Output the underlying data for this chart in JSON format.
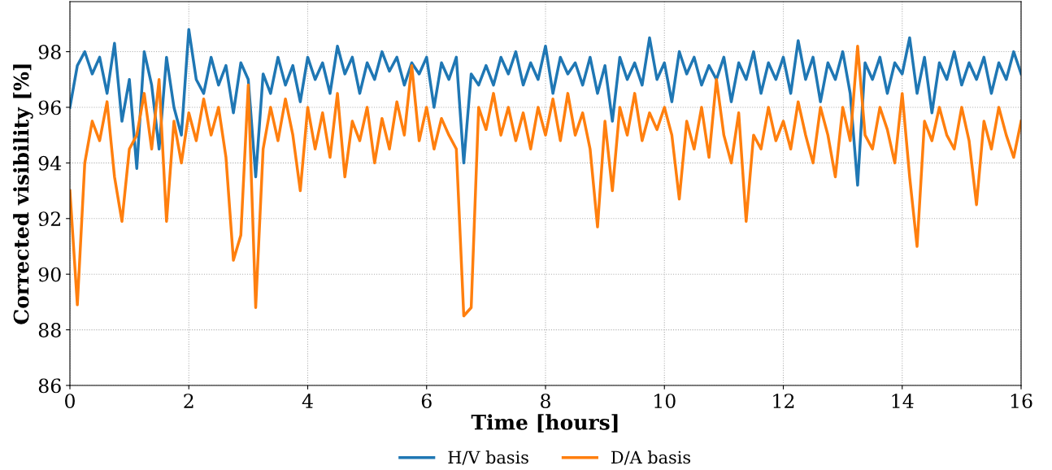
{
  "chart_data": {
    "type": "line",
    "xlabel": "Time [hours]",
    "ylabel": "Corrected visibility [%]",
    "x": [
      0,
      0.125,
      0.25,
      0.375,
      0.5,
      0.625,
      0.75,
      0.875,
      1,
      1.125,
      1.25,
      1.375,
      1.5,
      1.625,
      1.75,
      1.875,
      2,
      2.125,
      2.25,
      2.375,
      2.5,
      2.625,
      2.75,
      2.875,
      3,
      3.125,
      3.25,
      3.375,
      3.5,
      3.625,
      3.75,
      3.875,
      4,
      4.125,
      4.25,
      4.375,
      4.5,
      4.625,
      4.75,
      4.875,
      5,
      5.125,
      5.25,
      5.375,
      5.5,
      5.625,
      5.75,
      5.875,
      6,
      6.125,
      6.25,
      6.375,
      6.5,
      6.625,
      6.75,
      6.875,
      7,
      7.125,
      7.25,
      7.375,
      7.5,
      7.625,
      7.75,
      7.875,
      8,
      8.125,
      8.25,
      8.375,
      8.5,
      8.625,
      8.75,
      8.875,
      9,
      9.125,
      9.25,
      9.375,
      9.5,
      9.625,
      9.75,
      9.875,
      10,
      10.125,
      10.25,
      10.375,
      10.5,
      10.625,
      10.75,
      10.875,
      11,
      11.125,
      11.25,
      11.375,
      11.5,
      11.625,
      11.75,
      11.875,
      12,
      12.125,
      12.25,
      12.375,
      12.5,
      12.625,
      12.75,
      12.875,
      13,
      13.125,
      13.25,
      13.375,
      13.5,
      13.625,
      13.75,
      13.875,
      14,
      14.125,
      14.25,
      14.375,
      14.5,
      14.625,
      14.75,
      14.875,
      15,
      15.125,
      15.25,
      15.375,
      15.5,
      15.625,
      15.75,
      15.875,
      16
    ],
    "series": [
      {
        "name": "H/V basis",
        "color": "#1f77b4",
        "values": [
          96.0,
          97.5,
          98.0,
          97.2,
          97.8,
          96.5,
          98.3,
          95.5,
          97.0,
          93.8,
          98.0,
          96.8,
          94.5,
          97.8,
          96.0,
          95.0,
          98.8,
          97.0,
          96.5,
          97.8,
          96.8,
          97.5,
          95.8,
          97.6,
          97.0,
          93.5,
          97.2,
          96.5,
          97.8,
          96.8,
          97.5,
          96.2,
          97.8,
          97.0,
          97.6,
          96.5,
          98.2,
          97.2,
          97.8,
          96.5,
          97.6,
          97.0,
          98.0,
          97.3,
          97.8,
          96.8,
          97.6,
          97.2,
          97.8,
          96.0,
          97.6,
          97.0,
          97.8,
          94.0,
          97.2,
          96.8,
          97.5,
          96.8,
          97.8,
          97.2,
          98.0,
          96.8,
          97.6,
          97.0,
          98.2,
          96.5,
          97.8,
          97.2,
          97.6,
          96.8,
          97.8,
          96.5,
          97.5,
          95.5,
          97.8,
          97.0,
          97.6,
          96.8,
          98.5,
          97.0,
          97.6,
          96.2,
          98.0,
          97.2,
          97.8,
          96.8,
          97.5,
          97.0,
          97.8,
          96.2,
          97.6,
          97.0,
          98.0,
          96.5,
          97.6,
          97.0,
          97.8,
          96.5,
          98.4,
          97.0,
          97.8,
          96.2,
          97.6,
          97.0,
          98.0,
          96.5,
          93.2,
          97.6,
          97.0,
          97.8,
          96.5,
          97.6,
          97.2,
          98.5,
          96.5,
          97.8,
          95.8,
          97.6,
          97.0,
          98.0,
          96.8,
          97.6,
          97.0,
          97.8,
          96.5,
          97.6,
          97.0,
          98.0,
          97.2
        ]
      },
      {
        "name": "D/A basis",
        "color": "#ff7f0e",
        "values": [
          93.0,
          88.9,
          94.0,
          95.5,
          94.8,
          96.2,
          93.5,
          91.9,
          94.5,
          95.0,
          96.5,
          94.5,
          97.0,
          91.9,
          95.5,
          94.0,
          95.8,
          94.8,
          96.3,
          95.0,
          96.0,
          94.2,
          90.5,
          91.4,
          96.8,
          88.8,
          94.5,
          96.0,
          94.8,
          96.3,
          95.0,
          93.0,
          96.0,
          94.5,
          95.8,
          94.2,
          96.5,
          93.5,
          95.5,
          94.8,
          96.0,
          94.0,
          95.6,
          94.5,
          96.2,
          95.0,
          97.5,
          94.8,
          96.0,
          94.5,
          95.6,
          95.0,
          94.5,
          88.5,
          88.8,
          96.0,
          95.2,
          96.5,
          95.0,
          96.0,
          94.8,
          95.8,
          94.5,
          96.0,
          95.0,
          96.3,
          94.8,
          96.5,
          95.0,
          95.8,
          94.5,
          91.7,
          95.5,
          93.0,
          96.0,
          95.0,
          96.5,
          94.8,
          95.8,
          95.2,
          96.0,
          95.0,
          92.7,
          95.5,
          94.5,
          96.0,
          94.2,
          97.0,
          95.0,
          94.0,
          95.8,
          91.9,
          95.0,
          94.5,
          96.0,
          94.8,
          95.5,
          94.5,
          96.2,
          95.0,
          94.0,
          96.0,
          95.0,
          93.5,
          96.0,
          94.8,
          98.2,
          95.0,
          94.5,
          96.0,
          95.2,
          94.0,
          96.5,
          93.5,
          91.0,
          95.5,
          94.8,
          96.0,
          95.0,
          94.5,
          96.0,
          94.8,
          92.5,
          95.5,
          94.5,
          96.0,
          95.0,
          94.2,
          95.5
        ]
      }
    ],
    "xlim": [
      0,
      16
    ],
    "xticks": [
      0,
      2,
      4,
      6,
      8,
      10,
      12,
      14,
      16
    ],
    "ylim": [
      86,
      99.8
    ],
    "yticks": [
      86,
      88,
      90,
      92,
      94,
      96,
      98
    ],
    "grid": true,
    "legend": "bottom",
    "line_style": "solid",
    "marker": "none"
  }
}
